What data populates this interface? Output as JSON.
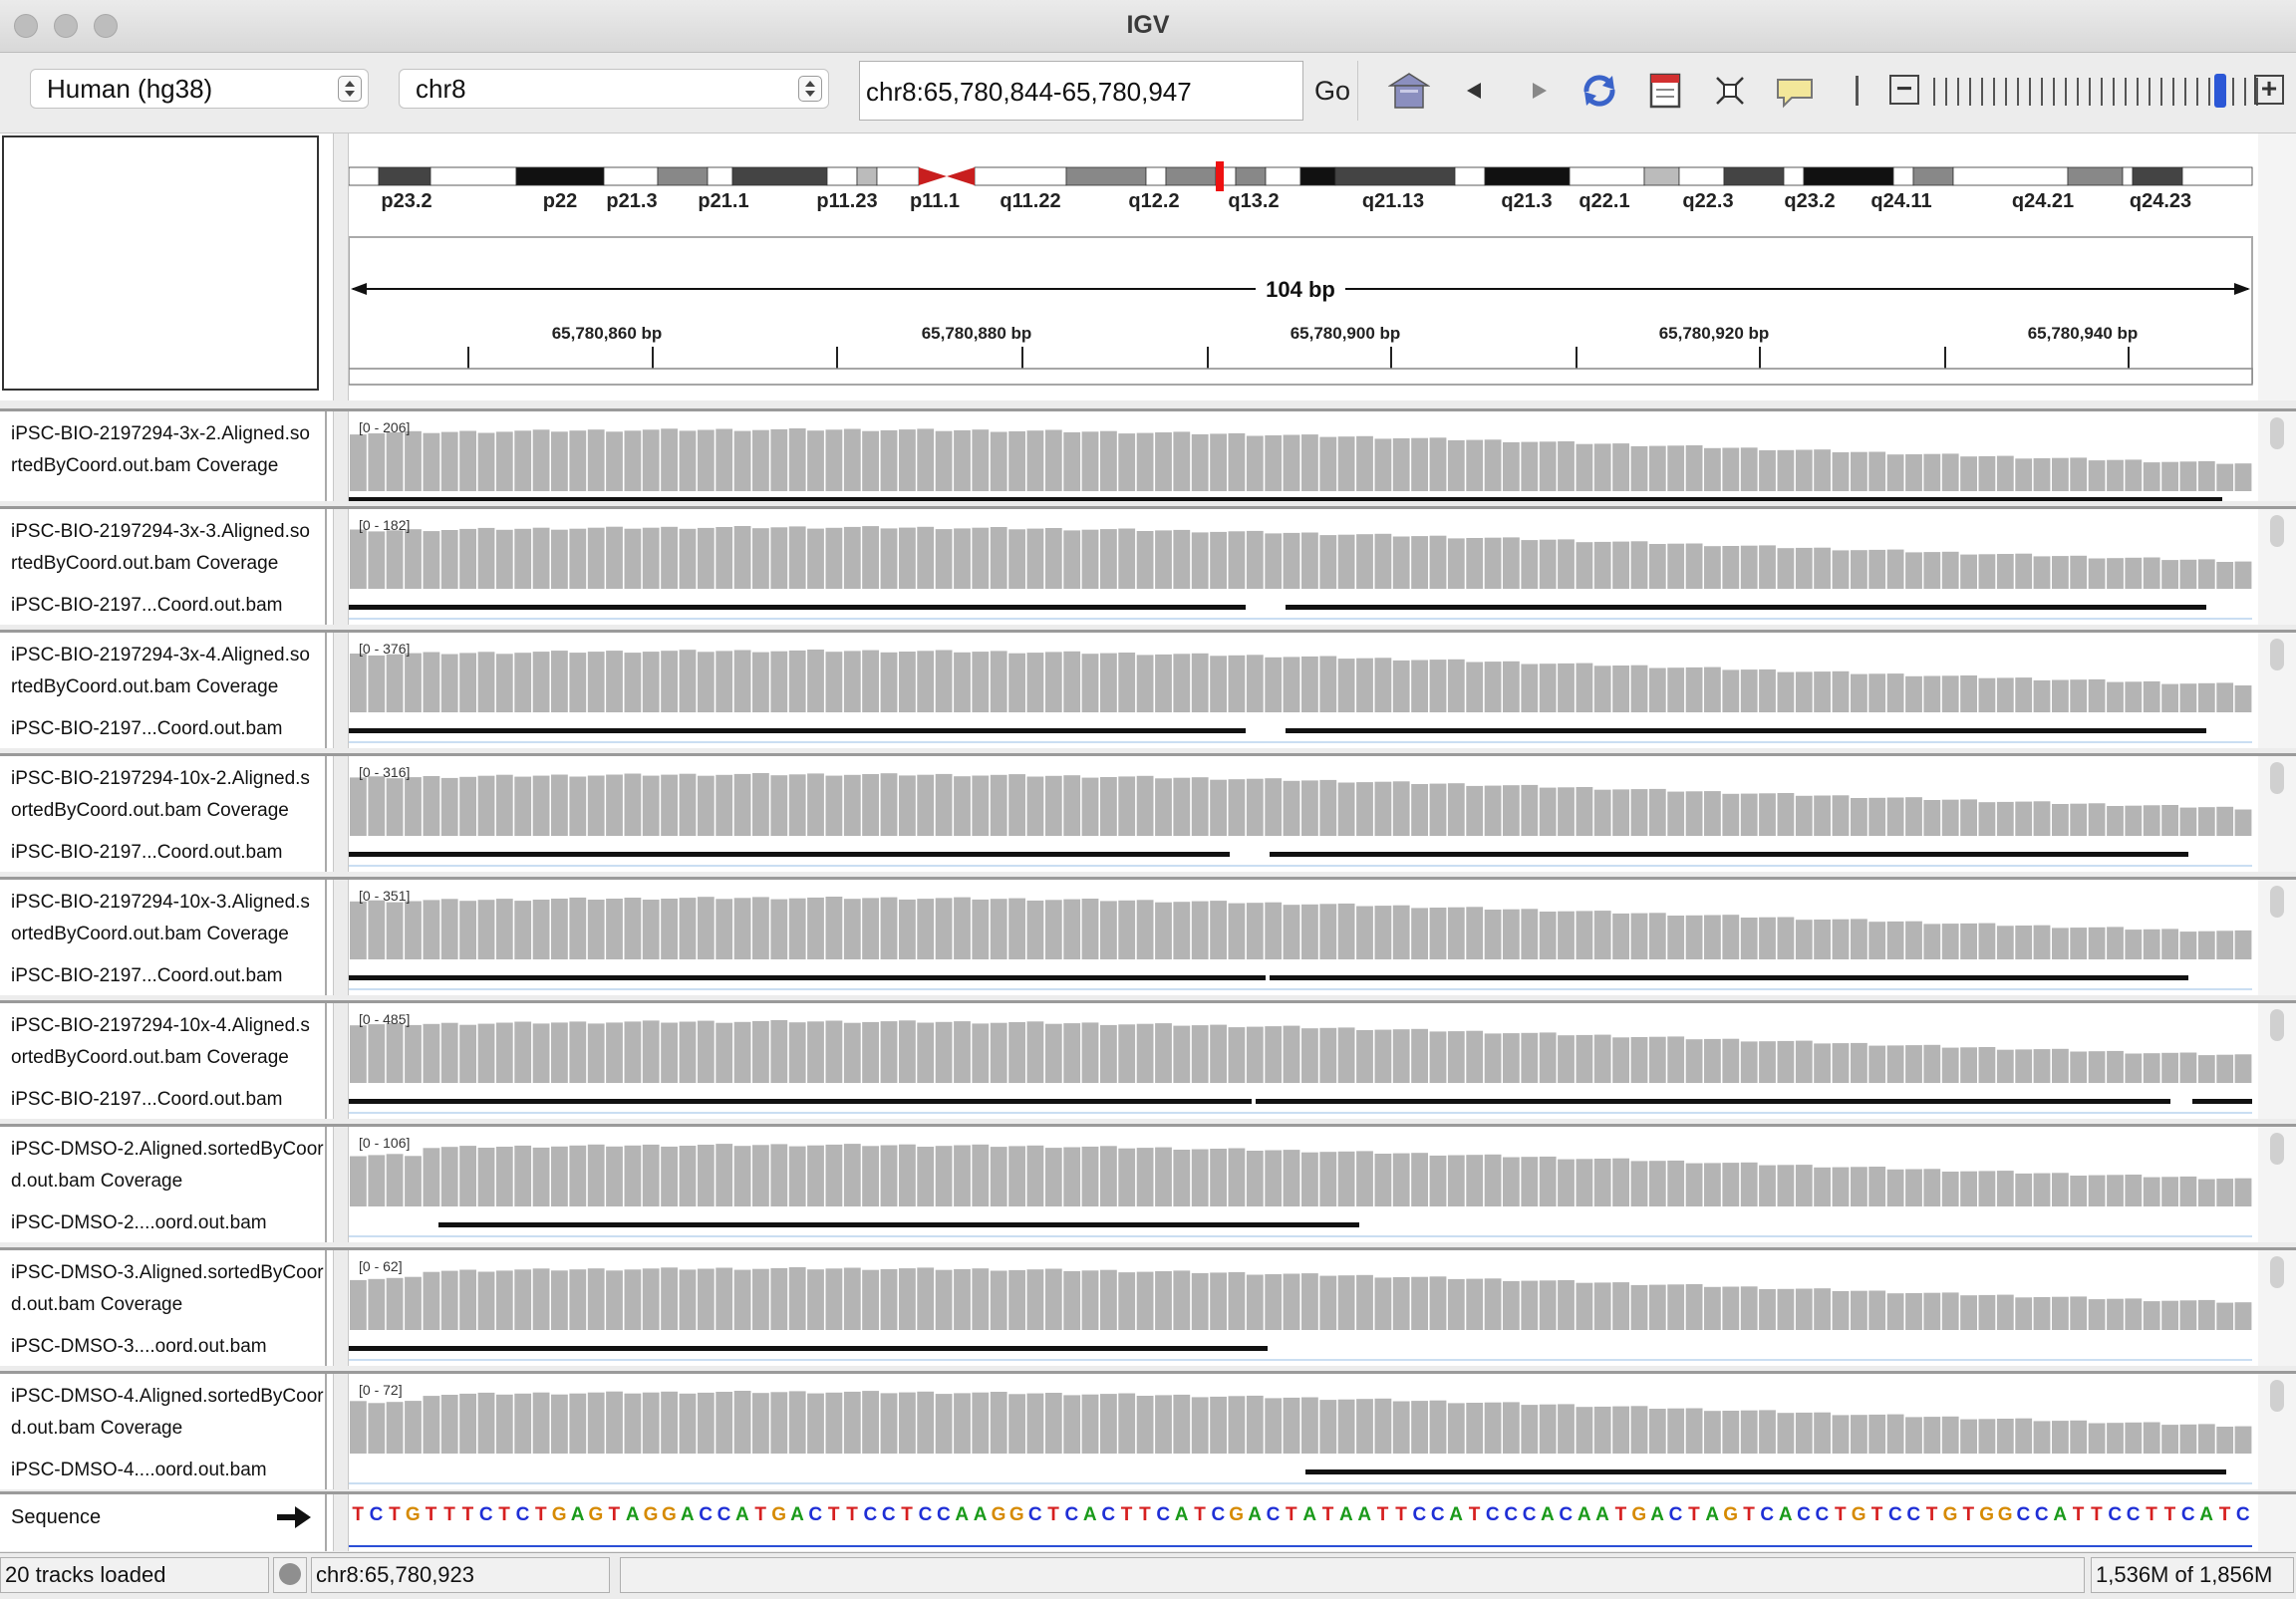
{
  "window": {
    "title": "IGV"
  },
  "toolbar": {
    "genome": "Human (hg38)",
    "chromosome": "chr8",
    "locus": "chr8:65,780,844-65,780,947",
    "go_label": "Go",
    "zoom_out_label": "−",
    "zoom_in_label": "+"
  },
  "ideogram": {
    "bands": [
      "p23.2",
      "p22",
      "p21.3",
      "p21.1",
      "p11.23",
      "p11.1",
      "q11.22",
      "q12.2",
      "q13.2",
      "q21.13",
      "q21.3",
      "q22.1",
      "q22.3",
      "q23.2",
      "q24.11",
      "q24.21",
      "q24.23"
    ]
  },
  "ruler": {
    "span_label": "104 bp",
    "ticks": [
      "65,780,860 bp",
      "65,780,880 bp",
      "65,780,900 bp",
      "65,780,920 bp",
      "65,780,940 bp"
    ]
  },
  "tracks": [
    {
      "name_line1": "iPSC-BIO-2197294-3x-2.Aligned.so",
      "name_line2": "rtedByCoord.out.bam Coverage",
      "alignment_name": "",
      "range": "[0 - 206]",
      "max": 206
    },
    {
      "name_line1": "iPSC-BIO-2197294-3x-3.Aligned.so",
      "name_line2": "rtedByCoord.out.bam Coverage",
      "alignment_name": "iPSC-BIO-2197...Coord.out.bam",
      "range": "[0 - 182]",
      "max": 182
    },
    {
      "name_line1": "iPSC-BIO-2197294-3x-4.Aligned.so",
      "name_line2": "rtedByCoord.out.bam Coverage",
      "alignment_name": "iPSC-BIO-2197...Coord.out.bam",
      "range": "[0 - 376]",
      "max": 376
    },
    {
      "name_line1": "iPSC-BIO-2197294-10x-2.Aligned.s",
      "name_line2": "ortedByCoord.out.bam Coverage",
      "alignment_name": "iPSC-BIO-2197...Coord.out.bam",
      "range": "[0 - 316]",
      "max": 316
    },
    {
      "name_line1": "iPSC-BIO-2197294-10x-3.Aligned.s",
      "name_line2": "ortedByCoord.out.bam Coverage",
      "alignment_name": "iPSC-BIO-2197...Coord.out.bam",
      "range": "[0 - 351]",
      "max": 351
    },
    {
      "name_line1": "iPSC-BIO-2197294-10x-4.Aligned.s",
      "name_line2": "ortedByCoord.out.bam Coverage",
      "alignment_name": "iPSC-BIO-2197...Coord.out.bam",
      "range": "[0 - 485]",
      "max": 485
    },
    {
      "name_line1": "iPSC-DMSO-2.Aligned.sortedByCoor",
      "name_line2": "d.out.bam Coverage",
      "alignment_name": "iPSC-DMSO-2....oord.out.bam",
      "range": "[0 - 106]",
      "max": 106
    },
    {
      "name_line1": "iPSC-DMSO-3.Aligned.sortedByCoor",
      "name_line2": "d.out.bam Coverage",
      "alignment_name": "iPSC-DMSO-3....oord.out.bam",
      "range": "[0 - 62]",
      "max": 62
    },
    {
      "name_line1": "iPSC-DMSO-4.Aligned.sortedByCoor",
      "name_line2": "d.out.bam Coverage",
      "alignment_name": "iPSC-DMSO-4....oord.out.bam",
      "range": "[0 - 72]",
      "max": 72
    }
  ],
  "sequence": {
    "label": "Sequence",
    "bases": "TCTGTTTCTCTGAGTAGGACCATGACTTCCTCCAAGGCTCACTTCATCGACTATAATTCCATCCCACAATGACTAGTCACCTGTCCTGTGGCCATTCCTTCATC",
    "colors": {
      "A": "#1a9a1a",
      "C": "#1f2fd6",
      "G": "#d68a00",
      "T": "#d61f1f"
    }
  },
  "status": {
    "tracks_loaded": "20 tracks loaded",
    "position": "chr8:65,780,923",
    "memory": "1,536M of 1,856M"
  }
}
